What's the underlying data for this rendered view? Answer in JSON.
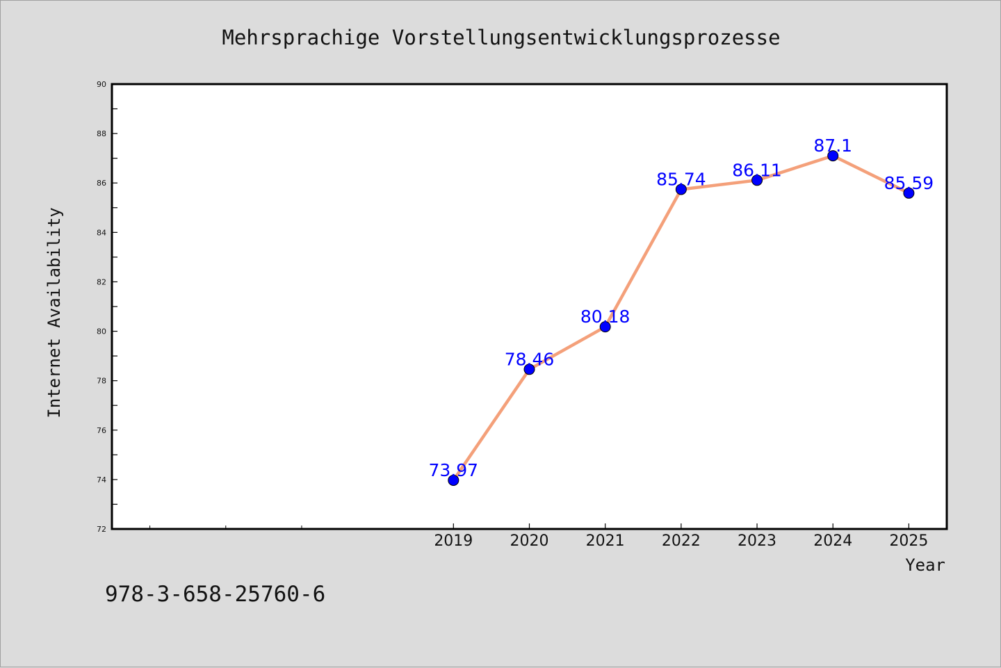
{
  "chart_data": {
    "type": "line",
    "title": "Mehrsprachige Vorstellungsentwicklungsprozesse",
    "xlabel": "Year",
    "ylabel": "Internet Availability",
    "x_ticks": [
      "2019",
      "2020",
      "2021",
      "2022",
      "2023",
      "2024",
      "2025"
    ],
    "x_minor_ticks": [
      "2015",
      "2016",
      "2017"
    ],
    "xlim": [
      2014.5,
      2025.5
    ],
    "ylim": [
      72,
      90
    ],
    "y_ticks": [
      "72",
      "74",
      "76",
      "78",
      "80",
      "82",
      "84",
      "86",
      "88",
      "90"
    ],
    "series": [
      {
        "x": [
          2019,
          2020,
          2021,
          2022,
          2023,
          2024,
          2025
        ],
        "values": [
          73.97,
          78.46,
          80.18,
          85.74,
          86.11,
          87.1,
          85.59
        ],
        "labels": [
          "73.97",
          "78.46",
          "80.18",
          "85.74",
          "86.11",
          "87.1",
          "85.59"
        ],
        "line_color": "#f4a07a",
        "marker_color": "#0000ff"
      }
    ],
    "grid": false,
    "legend": "none"
  },
  "footer": {
    "isbn": "978-3-658-25760-6"
  }
}
